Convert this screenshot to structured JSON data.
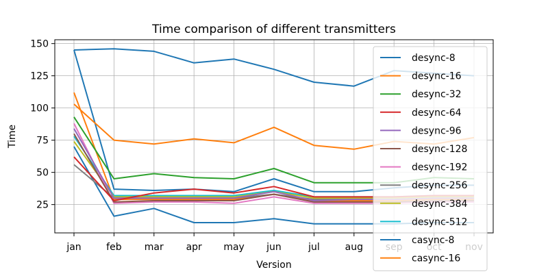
{
  "chart_data": {
    "type": "line",
    "title": "Time comparison of different transmitters",
    "xlabel": "Version",
    "ylabel": "Time",
    "categories": [
      "jan",
      "feb",
      "mar",
      "apr",
      "may",
      "jun",
      "jul",
      "aug",
      "sep",
      "oct",
      "nov"
    ],
    "ylim": [
      3,
      153
    ],
    "yticks": [
      25,
      50,
      75,
      100,
      125,
      150
    ],
    "grid": true,
    "legend_placement": "upper right",
    "series": [
      {
        "name": "desync-8",
        "color": "#1f77b4",
        "values": [
          145,
          146,
          144,
          135,
          138,
          130,
          120,
          117,
          129,
          127,
          125
        ]
      },
      {
        "name": "desync-16",
        "color": "#ff7f0e",
        "values": [
          103,
          75,
          72,
          76,
          73,
          85,
          71,
          68,
          74,
          72,
          77
        ]
      },
      {
        "name": "desync-32",
        "color": "#2ca02c",
        "values": [
          93,
          45,
          49,
          46,
          45,
          53,
          42,
          42,
          42,
          46,
          45
        ]
      },
      {
        "name": "desync-64",
        "color": "#d62728",
        "values": [
          62,
          28,
          34,
          37,
          34,
          39,
          31,
          31,
          31,
          32,
          32
        ]
      },
      {
        "name": "desync-96",
        "color": "#9467bd",
        "values": [
          84,
          30,
          30,
          30,
          30,
          35,
          28,
          29,
          29,
          30,
          30
        ]
      },
      {
        "name": "desync-128",
        "color": "#8c564b",
        "values": [
          80,
          27,
          28,
          28,
          28,
          33,
          27,
          27,
          27,
          28,
          28
        ]
      },
      {
        "name": "desync-192",
        "color": "#e377c2",
        "values": [
          88,
          26,
          27,
          27,
          26,
          31,
          26,
          26,
          26,
          27,
          27
        ]
      },
      {
        "name": "desync-256",
        "color": "#7f7f7f",
        "values": [
          56,
          30,
          30,
          30,
          30,
          33,
          29,
          29,
          29,
          30,
          30
        ]
      },
      {
        "name": "desync-384",
        "color": "#bcbd22",
        "values": [
          74,
          31,
          31,
          31,
          31,
          35,
          30,
          30,
          30,
          31,
          31
        ]
      },
      {
        "name": "desync-512",
        "color": "#17becf",
        "values": [
          78,
          32,
          32,
          32,
          32,
          36,
          31,
          31,
          31,
          32,
          32
        ]
      },
      {
        "name": "casync-8",
        "color": "#1f77b4",
        "values": [
          70,
          16,
          22,
          11,
          11,
          14,
          10,
          10,
          10,
          11,
          11
        ]
      },
      {
        "name": "casync-16",
        "color": "#ff7f0e",
        "values": [
          112,
          29,
          29,
          29,
          29,
          33,
          28,
          28,
          28,
          29,
          29
        ]
      }
    ],
    "extra_lines": [
      {
        "color": "#1f77b4",
        "values": [
          145,
          37,
          36,
          37,
          35,
          45,
          35,
          35,
          38,
          40,
          40
        ]
      }
    ]
  }
}
